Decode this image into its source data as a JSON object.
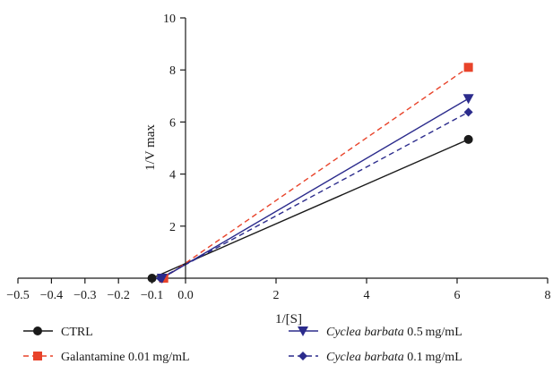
{
  "chart_data": {
    "type": "line",
    "title": "",
    "xlabel": "1/[S]",
    "ylabel": "1/V max",
    "xlim": [
      -0.5,
      8
    ],
    "ylim": [
      0,
      10
    ],
    "x_ticks": [
      {
        "value": -0.5,
        "label": "−0.5"
      },
      {
        "value": -0.4,
        "label": "−0.4"
      },
      {
        "value": -0.3,
        "label": "−0.3"
      },
      {
        "value": -0.2,
        "label": "−0.2"
      },
      {
        "value": -0.1,
        "label": "−0.1"
      },
      {
        "value": 0,
        "label": "0.0"
      },
      {
        "value": 2,
        "label": "2"
      },
      {
        "value": 4,
        "label": "4"
      },
      {
        "value": 6,
        "label": "6"
      },
      {
        "value": 8,
        "label": "8"
      }
    ],
    "y_ticks": [
      {
        "value": 2,
        "label": "2"
      },
      {
        "value": 4,
        "label": "4"
      },
      {
        "value": 6,
        "label": "6"
      },
      {
        "value": 8,
        "label": "8"
      },
      {
        "value": 10,
        "label": "10"
      }
    ],
    "axis_break": {
      "left_segment": [
        -0.5,
        0
      ],
      "right_segment": [
        0,
        8
      ]
    },
    "grid": false,
    "legend_position": "bottom",
    "series": [
      {
        "name_parts": [
          {
            "text": "CTRL",
            "italic": false
          }
        ],
        "color": "#1a1a1a",
        "marker": "circle",
        "dashed": false,
        "points": [
          {
            "x": -0.1,
            "y": 0
          },
          {
            "x": 6.25,
            "y": 5.33
          }
        ],
        "line_start": {
          "x": -0.1,
          "y": 0
        },
        "line_end": {
          "x": 6.25,
          "y": 5.33
        }
      },
      {
        "name_parts": [
          {
            "text": "Galantamine 0.01 mg/mL",
            "italic": false
          }
        ],
        "color": "#e8432a",
        "marker": "square",
        "dashed": true,
        "points": [
          {
            "x": -0.065,
            "y": 0
          },
          {
            "x": 6.25,
            "y": 8.1
          }
        ],
        "line_start": {
          "x": -0.065,
          "y": 0
        },
        "line_end": {
          "x": 6.25,
          "y": 8.1
        }
      },
      {
        "name_parts": [
          {
            "text": "Cyclea barbata",
            "italic": true
          },
          {
            "text": " 0.5 mg/mL",
            "italic": false
          }
        ],
        "color": "#2b2b8c",
        "marker": "triangle-down",
        "dashed": false,
        "points": [
          {
            "x": -0.07,
            "y": 0
          },
          {
            "x": 6.25,
            "y": 6.9
          }
        ],
        "line_start": {
          "x": -0.07,
          "y": 0
        },
        "line_end": {
          "x": 6.25,
          "y": 6.9
        }
      },
      {
        "name_parts": [
          {
            "text": "Cyclea barbata",
            "italic": true
          },
          {
            "text": " 0.1 mg/mL",
            "italic": false
          }
        ],
        "color": "#2b2b8c",
        "marker": "diamond",
        "dashed": true,
        "points": [
          {
            "x": -0.075,
            "y": 0
          },
          {
            "x": 6.25,
            "y": 6.38
          }
        ],
        "line_start": {
          "x": -0.075,
          "y": 0
        },
        "line_end": {
          "x": 6.25,
          "y": 6.38
        }
      }
    ]
  }
}
